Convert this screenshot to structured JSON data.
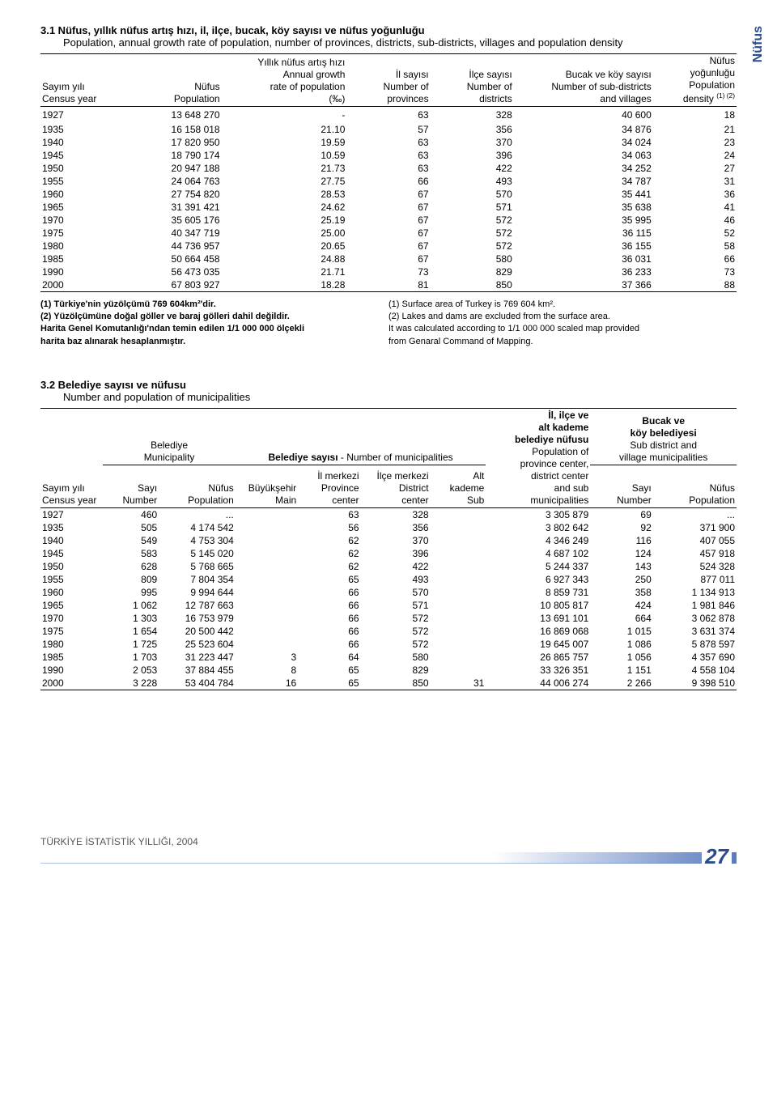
{
  "side_tab": "Nüfus",
  "section1": {
    "title_tr": "3.1 Nüfus, yıllık nüfus artış hızı, il, ilçe, bucak, köy sayısı ve nüfus yoğunluğu",
    "title_en": "Population, annual growth rate of population, number of provinces, districts, sub-districts, villages and population density",
    "headers": {
      "c0_l0": "Sayım yılı",
      "c0_l1": "Census year",
      "c1_l0": "Nüfus",
      "c1_l1": "Population",
      "c2_l0": "Yıllık nüfus artış hızı",
      "c2_l1": "Annual growth",
      "c2_l2": "rate of population",
      "c2_l3": "(‰)",
      "c3_l0": "İl sayısı",
      "c3_l1": "Number of",
      "c3_l2": "provinces",
      "c4_l0": "İlçe sayısı",
      "c4_l1": "Number of",
      "c4_l2": "districts",
      "c5_l0": "Bucak ve köy sayısı",
      "c5_l1": "Number of sub-districts",
      "c5_l2": "and villages",
      "c6_l0": "Nüfus",
      "c6_l1": "yoğunluğu",
      "c6_l2": "Population",
      "c6_l3": "density ",
      "c6_sup": "(1) (2)"
    },
    "rows": [
      [
        "1927",
        "13 648 270",
        "-",
        "63",
        "328",
        "40 600",
        "18"
      ],
      [
        "1935",
        "16 158 018",
        "21.10",
        "57",
        "356",
        "34 876",
        "21"
      ],
      [
        "1940",
        "17 820 950",
        "19.59",
        "63",
        "370",
        "34 024",
        "23"
      ],
      [
        "1945",
        "18 790 174",
        "10.59",
        "63",
        "396",
        "34 063",
        "24"
      ],
      [
        "1950",
        "20 947 188",
        "21.73",
        "63",
        "422",
        "34 252",
        "27"
      ],
      [
        "1955",
        "24 064 763",
        "27.75",
        "66",
        "493",
        "34 787",
        "31"
      ],
      [
        "1960",
        "27 754 820",
        "28.53",
        "67",
        "570",
        "35 441",
        "36"
      ],
      [
        "1965",
        "31 391 421",
        "24.62",
        "67",
        "571",
        "35 638",
        "41"
      ],
      [
        "1970",
        "35 605 176",
        "25.19",
        "67",
        "572",
        "35 995",
        "46"
      ],
      [
        "1975",
        "40 347 719",
        "25.00",
        "67",
        "572",
        "36 115",
        "52"
      ],
      [
        "1980",
        "44 736 957",
        "20.65",
        "67",
        "572",
        "36 155",
        "58"
      ],
      [
        "1985",
        "50 664 458",
        "24.88",
        "67",
        "580",
        "36 031",
        "66"
      ],
      [
        "1990",
        "56 473 035",
        "21.71",
        "73",
        "829",
        "36 233",
        "73"
      ],
      [
        "2000",
        "67 803 927",
        "18.28",
        "81",
        "850",
        "37 366",
        "88"
      ]
    ],
    "footnotes_left": [
      "(1) Türkiye'nin yüzölçümü 769 604km²'dir.",
      "(2) Yüzölçümüne doğal göller ve baraj gölleri dahil değildir.",
      "Harita Genel Komutanlığı'ndan temin edilen 1/1 000 000 ölçekli",
      "harita baz alınarak hesaplanmıştır."
    ],
    "footnotes_right": [
      "(1) Surface area of Turkey is 769 604 km².",
      "(2) Lakes and dams are excluded from the surface area.",
      "It was calculated according to 1/1 000 000 scaled map provided",
      "from Genaral Command of Mapping."
    ]
  },
  "section2": {
    "title_tr": "3.2 Belediye sayısı ve nüfusu",
    "title_en": "Number and population of municipalities",
    "headers": {
      "mun_tr": "Belediye",
      "mun_en": "Municipality",
      "mun_count_tr": "Belediye sayısı",
      "mun_count_en": " - Number of municipalities",
      "col0_l0": "Sayım yılı",
      "col0_l1": "Census year",
      "col1_l0": "Sayı",
      "col1_l1": "Number",
      "col2_l0": "Nüfus",
      "col2_l1": "Population",
      "col3_l0": "Büyükşehir",
      "col3_l1": "Main",
      "col4_l0": "İl merkezi",
      "col4_l1": "Province",
      "col4_l2": "center",
      "col5_l0": "İlçe merkezi",
      "col5_l1": "District",
      "col5_l2": "center",
      "col6_l0": "Alt",
      "col6_l1": "kademe",
      "col6_l2": "Sub",
      "col7_l0": "İl, ilçe ve",
      "col7_l1": "alt kademe",
      "col7_l2": "belediye nüfusu",
      "col7_l3": "Population of",
      "col7_l4": "province center,",
      "col7_l5": "district center",
      "col7_l6": "and sub",
      "col7_l7": "municipalities",
      "col8_l0": "Bucak ve",
      "col8_l1": "köy belediyesi",
      "col8_l2": "Sub district and",
      "col8_l3": "village municipalities",
      "col8a_l0": "Sayı",
      "col8a_l1": "Number",
      "col8b_l0": "Nüfus",
      "col8b_l1": "Population"
    },
    "rows": [
      [
        "1927",
        "460",
        "...",
        "",
        "63",
        "328",
        "",
        "3 305 879",
        "69",
        "..."
      ],
      [
        "1935",
        "505",
        "4 174 542",
        "",
        "56",
        "356",
        "",
        "3 802 642",
        "92",
        "371 900"
      ],
      [
        "1940",
        "549",
        "4 753 304",
        "",
        "62",
        "370",
        "",
        "4 346 249",
        "116",
        "407 055"
      ],
      [
        "1945",
        "583",
        "5 145 020",
        "",
        "62",
        "396",
        "",
        "4 687 102",
        "124",
        "457 918"
      ],
      [
        "1950",
        "628",
        "5 768 665",
        "",
        "62",
        "422",
        "",
        "5 244 337",
        "143",
        "524 328"
      ],
      [
        "1955",
        "809",
        "7 804 354",
        "",
        "65",
        "493",
        "",
        "6 927 343",
        "250",
        "877 011"
      ],
      [
        "1960",
        "995",
        "9 994 644",
        "",
        "66",
        "570",
        "",
        "8 859 731",
        "358",
        "1 134 913"
      ],
      [
        "1965",
        "1 062",
        "12 787 663",
        "",
        "66",
        "571",
        "",
        "10 805 817",
        "424",
        "1 981 846"
      ],
      [
        "1970",
        "1 303",
        "16 753 979",
        "",
        "66",
        "572",
        "",
        "13 691 101",
        "664",
        "3 062 878"
      ],
      [
        "1975",
        "1 654",
        "20 500 442",
        "",
        "66",
        "572",
        "",
        "16 869 068",
        "1 015",
        "3 631 374"
      ],
      [
        "1980",
        "1 725",
        "25 523 604",
        "",
        "66",
        "572",
        "",
        "19 645 007",
        "1 086",
        "5 878 597"
      ],
      [
        "1985",
        "1 703",
        "31 223 447",
        "3",
        "64",
        "580",
        "",
        "26 865 757",
        "1 056",
        "4 357 690"
      ],
      [
        "1990",
        "2 053",
        "37 884 455",
        "8",
        "65",
        "829",
        "",
        "33 326 351",
        "1 151",
        "4 558 104"
      ],
      [
        "2000",
        "3 228",
        "53 404 784",
        "16",
        "65",
        "850",
        "31",
        "44 006 274",
        "2 266",
        "9 398 510"
      ]
    ]
  },
  "footer_text": "TÜRKİYE İSTATİSTİK YILLIĞI, 2004",
  "page_number": "27",
  "colors": {
    "brand": "#2B4C8C"
  }
}
